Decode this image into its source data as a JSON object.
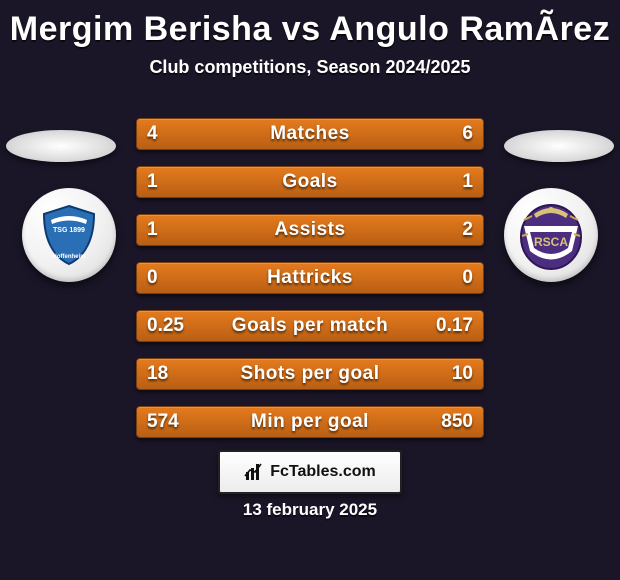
{
  "title": {
    "text": "Mergim Berisha vs Angulo RamÃ­rez",
    "fontsize": 34,
    "color": "#ffffff"
  },
  "subtitle": {
    "text": "Club competitions, Season 2024/2025",
    "fontsize": 18,
    "color": "#ffffff"
  },
  "background_color": "#1a1628",
  "bars": {
    "type": "comparison-bars",
    "bar_colors": {
      "fill_top": "#e47a1e",
      "fill_bottom": "#b95f13",
      "border": "#7a3d0c"
    },
    "label_fontsize": 19,
    "value_fontsize": 19,
    "text_color": "#ffffff",
    "rows": [
      {
        "label": "Matches",
        "left": "4",
        "right": "6"
      },
      {
        "label": "Goals",
        "left": "1",
        "right": "1"
      },
      {
        "label": "Assists",
        "left": "1",
        "right": "2"
      },
      {
        "label": "Hattricks",
        "left": "0",
        "right": "0"
      },
      {
        "label": "Goals per match",
        "left": "0.25",
        "right": "0.17"
      },
      {
        "label": "Shots per goal",
        "left": "18",
        "right": "10"
      },
      {
        "label": "Min per goal",
        "left": "574",
        "right": "850"
      }
    ]
  },
  "crests": {
    "left": {
      "team": "TSG 1899 Hoffenheim",
      "shield_fill": "#2a6fb5",
      "shield_accent": "#ffffff"
    },
    "right": {
      "team": "RSC Anderlecht",
      "shield_fill": "#4b2e7f",
      "shield_accent": "#d8c27a"
    }
  },
  "footer": {
    "brand": "FcTables.com",
    "brand_fontsize": 16,
    "date": "13 february 2025",
    "date_fontsize": 17
  }
}
